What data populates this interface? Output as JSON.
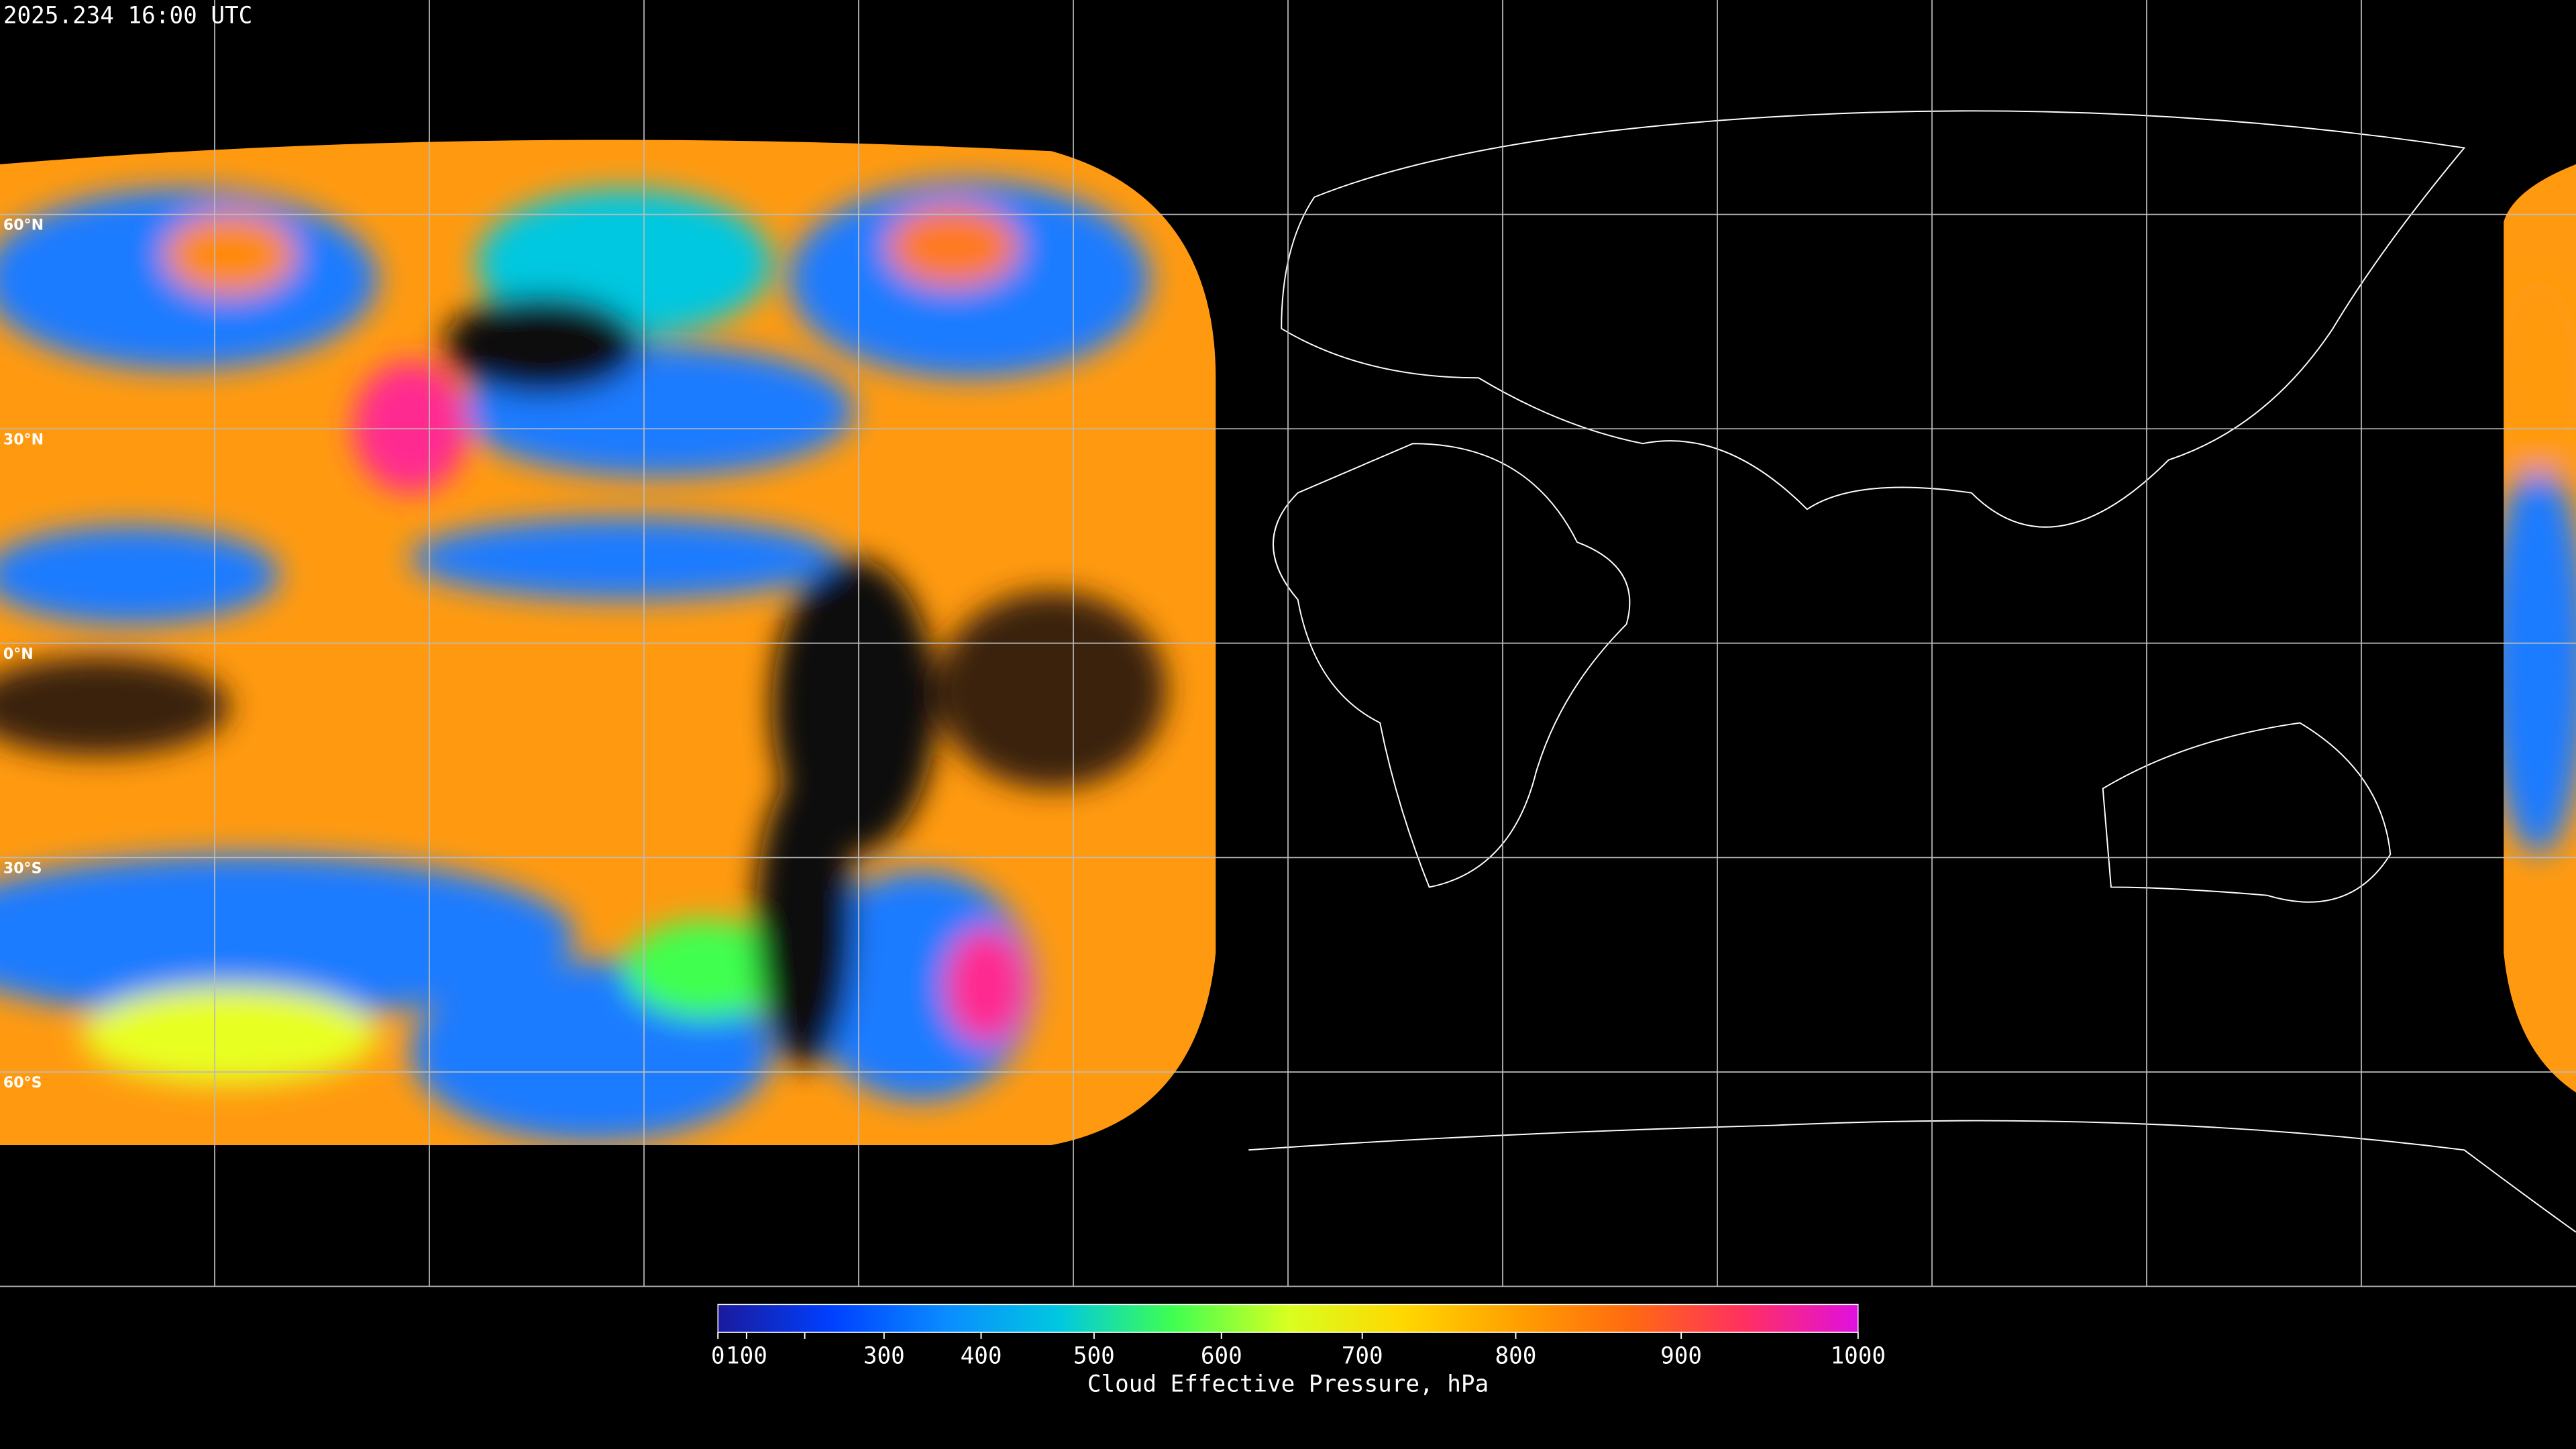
{
  "timestamp": "2025.234 16:00 UTC",
  "map": {
    "lat_ticks": [
      {
        "value": 60,
        "label": "60°N"
      },
      {
        "value": 30,
        "label": "30°N"
      },
      {
        "value": 0,
        "label": "0°N"
      },
      {
        "value": -30,
        "label": "30°S"
      },
      {
        "value": -60,
        "label": "60°S"
      }
    ],
    "lon_gridlines": [
      -150,
      -120,
      -90,
      -60,
      -30,
      0,
      30,
      60,
      90,
      120,
      150
    ],
    "lonlim": [
      -180,
      180
    ],
    "latlim": [
      -90,
      90
    ],
    "grid_color": "#bbbbbb"
  },
  "colorbar": {
    "title": "Cloud Effective Pressure, hPa",
    "clim": [
      0,
      1000
    ],
    "scale": "power",
    "exponent": 1.6,
    "ticks": [
      0,
      100,
      300,
      400,
      500,
      600,
      700,
      800,
      900,
      1000
    ],
    "minor_ticks": [
      200
    ],
    "colormap": [
      "#1a1a9c",
      "#0040ff",
      "#0a8cff",
      "#00c8e0",
      "#40ff50",
      "#d8ff20",
      "#ffd800",
      "#ffa000",
      "#ff6a10",
      "#ff3060",
      "#e010e0"
    ]
  }
}
